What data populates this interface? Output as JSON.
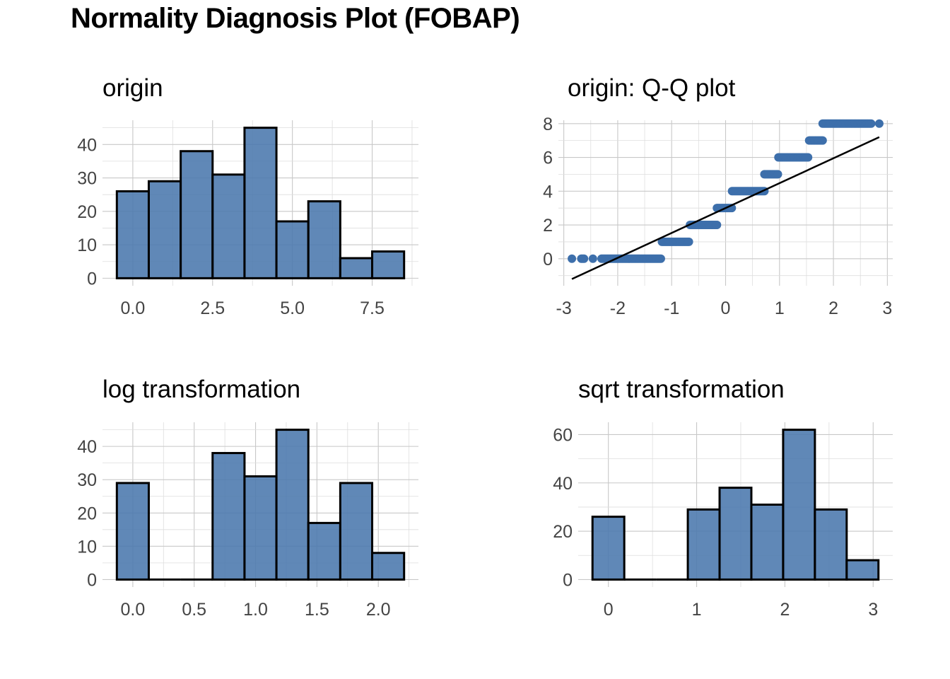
{
  "title": "Normality Diagnosis Plot (FOBAP)",
  "colors": {
    "bar_fill": "#4a78ad",
    "bar_outline": "#000000",
    "point": "#3d6fab",
    "line": "#000000",
    "grid": "#c8c8c8"
  },
  "chart_data": [
    {
      "id": "origin",
      "type": "bar",
      "title": "origin",
      "xlabel": "",
      "ylabel": "",
      "bins": [
        {
          "x0": -0.5,
          "x1": 0.5,
          "count": 26
        },
        {
          "x0": 0.5,
          "x1": 1.5,
          "count": 29
        },
        {
          "x0": 1.5,
          "x1": 2.5,
          "count": 38
        },
        {
          "x0": 2.5,
          "x1": 3.5,
          "count": 31
        },
        {
          "x0": 3.5,
          "x1": 4.5,
          "count": 45
        },
        {
          "x0": 4.5,
          "x1": 5.5,
          "count": 17
        },
        {
          "x0": 5.5,
          "x1": 6.5,
          "count": 23
        },
        {
          "x0": 6.5,
          "x1": 7.5,
          "count": 6
        },
        {
          "x0": 7.5,
          "x1": 8.5,
          "count": 8
        }
      ],
      "xlim": [
        -0.95,
        8.95
      ],
      "ylim": [
        -2.25,
        47.25
      ],
      "xticks": [
        0,
        2.5,
        5,
        7.5
      ],
      "xtick_labels": [
        "0.0",
        "2.5",
        "5.0",
        "7.5"
      ],
      "yticks": [
        0,
        10,
        20,
        30,
        40
      ],
      "ytick_labels": [
        "0",
        "10",
        "20",
        "30",
        "40"
      ],
      "grid": true
    },
    {
      "id": "qq",
      "type": "scatter",
      "title": "origin: Q-Q plot",
      "xlabel": "",
      "ylabel": "",
      "points_by_level": [
        {
          "y": 0,
          "x_from": -2.85,
          "x_to": -1.18,
          "outliers": [
            -2.85,
            -2.46
          ]
        },
        {
          "y": 1,
          "x_from": -1.18,
          "x_to": -0.68
        },
        {
          "y": 2,
          "x_from": -0.66,
          "x_to": -0.16
        },
        {
          "y": 3,
          "x_from": -0.16,
          "x_to": 0.12
        },
        {
          "y": 4,
          "x_from": 0.12,
          "x_to": 0.72
        },
        {
          "y": 5,
          "x_from": 0.72,
          "x_to": 0.98
        },
        {
          "y": 6,
          "x_from": 0.98,
          "x_to": 1.55
        },
        {
          "y": 7,
          "x_from": 1.55,
          "x_to": 1.8
        },
        {
          "y": 8,
          "x_from": 1.8,
          "x_to": 2.85,
          "outliers": [
            2.85
          ]
        }
      ],
      "reference_line": {
        "x": [
          -2.85,
          2.85
        ],
        "y": [
          -1.2,
          7.2
        ]
      },
      "xlim": [
        -3.1,
        3.1
      ],
      "ylim": [
        -1.6,
        8.2
      ],
      "xticks": [
        -3,
        -2,
        -1,
        0,
        1,
        2,
        3
      ],
      "xtick_labels": [
        "-3",
        "-2",
        "-1",
        "0",
        "1",
        "2",
        "3"
      ],
      "yticks": [
        0,
        2,
        4,
        6,
        8
      ],
      "ytick_labels": [
        "0",
        "2",
        "4",
        "6",
        "8"
      ],
      "grid": true
    },
    {
      "id": "log",
      "type": "bar",
      "title": "log transformation",
      "xlabel": "",
      "ylabel": "",
      "bins": [
        {
          "x0": -0.13,
          "x1": 0.13,
          "count": 29
        },
        {
          "x0": 0.13,
          "x1": 0.39,
          "count": 0
        },
        {
          "x0": 0.39,
          "x1": 0.65,
          "count": 0
        },
        {
          "x0": 0.65,
          "x1": 0.91,
          "count": 38
        },
        {
          "x0": 0.91,
          "x1": 1.17,
          "count": 31
        },
        {
          "x0": 1.17,
          "x1": 1.43,
          "count": 45
        },
        {
          "x0": 1.43,
          "x1": 1.69,
          "count": 17
        },
        {
          "x0": 1.69,
          "x1": 1.95,
          "count": 29
        },
        {
          "x0": 1.95,
          "x1": 2.21,
          "count": 8
        }
      ],
      "xlim": [
        -0.247,
        2.327
      ],
      "ylim": [
        -2.25,
        47.25
      ],
      "xticks": [
        0,
        0.5,
        1,
        1.5,
        2
      ],
      "xtick_labels": [
        "0.0",
        "0.5",
        "1.0",
        "1.5",
        "2.0"
      ],
      "yticks": [
        0,
        10,
        20,
        30,
        40
      ],
      "ytick_labels": [
        "0",
        "10",
        "20",
        "30",
        "40"
      ],
      "grid": true
    },
    {
      "id": "sqrt",
      "type": "bar",
      "title": "sqrt transformation",
      "xlabel": "",
      "ylabel": "",
      "bins": [
        {
          "x0": -0.18,
          "x1": 0.18,
          "count": 26
        },
        {
          "x0": 0.18,
          "x1": 0.54,
          "count": 0
        },
        {
          "x0": 0.54,
          "x1": 0.9,
          "count": 0
        },
        {
          "x0": 0.9,
          "x1": 1.26,
          "count": 29
        },
        {
          "x0": 1.26,
          "x1": 1.62,
          "count": 38
        },
        {
          "x0": 1.62,
          "x1": 1.98,
          "count": 31
        },
        {
          "x0": 1.98,
          "x1": 2.34,
          "count": 62
        },
        {
          "x0": 2.34,
          "x1": 2.7,
          "count": 29
        },
        {
          "x0": 2.7,
          "x1": 3.06,
          "count": 8
        }
      ],
      "xlim": [
        -0.342,
        3.222
      ],
      "ylim": [
        -3.1,
        65.1
      ],
      "xticks": [
        0,
        1,
        2,
        3
      ],
      "xtick_labels": [
        "0",
        "1",
        "2",
        "3"
      ],
      "yticks": [
        0,
        20,
        40,
        60
      ],
      "ytick_labels": [
        "0",
        "20",
        "40",
        "60"
      ],
      "grid": true
    }
  ]
}
